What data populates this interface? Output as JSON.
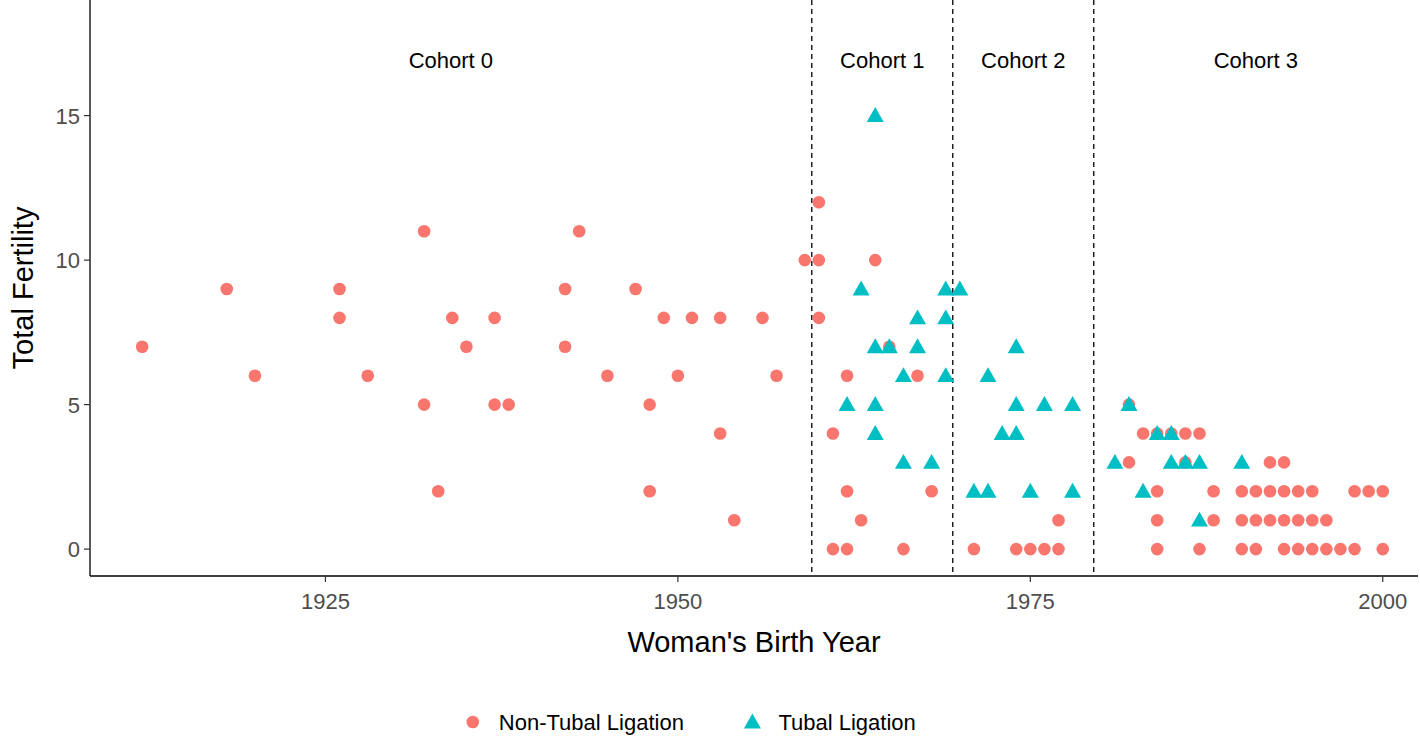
{
  "chart_data": {
    "type": "scatter",
    "x_label": "Woman's Birth Year",
    "y_label": "Total Fertility",
    "xlim": [
      1908.3,
      2002.5
    ],
    "ylim": [
      -0.93,
      19
    ],
    "xticks": [
      1925,
      1950,
      1975,
      2000
    ],
    "yticks": [
      0,
      5,
      10,
      15
    ],
    "grid": false,
    "legend": "bottom",
    "vlines": [
      1959.5,
      1969.5,
      1979.5
    ],
    "annotations": [
      "Cohort 0",
      "Cohort 1",
      "Cohort 2",
      "Cohort 3"
    ],
    "series": [
      {
        "name": "Non-Tubal Ligation",
        "color": "#F8766D",
        "marker": "circle",
        "x": [
          1912,
          1918,
          1920,
          1926,
          1926,
          1928,
          1932,
          1932,
          1933,
          1934,
          1935,
          1937,
          1937,
          1938,
          1942,
          1942,
          1943,
          1945,
          1947,
          1948,
          1948,
          1949,
          1950,
          1951,
          1953,
          1953,
          1954,
          1956,
          1957,
          1959,
          1960,
          1960,
          1960,
          1961,
          1961,
          1962,
          1962,
          1962,
          1963,
          1964,
          1965,
          1966,
          1967,
          1968,
          1971,
          1974,
          1975,
          1976,
          1977,
          1977,
          1982,
          1982,
          1983,
          1984,
          1984,
          1984,
          1984,
          1985,
          1986,
          1986,
          1987,
          1987,
          1988,
          1988,
          1990,
          1990,
          1990,
          1991,
          1991,
          1991,
          1992,
          1992,
          1992,
          1993,
          1993,
          1993,
          1993,
          1994,
          1994,
          1994,
          1995,
          1995,
          1995,
          1996,
          1996,
          1997,
          1998,
          1998,
          1999,
          2000,
          2000
        ],
        "values": [
          7,
          9,
          6,
          9,
          8,
          6,
          11,
          5,
          2,
          8,
          7,
          8,
          5,
          5,
          9,
          7,
          11,
          6,
          9,
          5,
          2,
          8,
          6,
          8,
          8,
          4,
          1,
          8,
          6,
          10,
          10,
          8,
          12,
          4,
          0,
          6,
          2,
          0,
          1,
          10,
          7,
          0,
          6,
          2,
          0,
          0,
          0,
          0,
          1,
          0,
          5,
          3,
          4,
          4,
          2,
          1,
          0,
          4,
          4,
          3,
          4,
          0,
          2,
          1,
          2,
          1,
          0,
          2,
          1,
          0,
          3,
          2,
          1,
          3,
          2,
          1,
          0,
          2,
          1,
          0,
          2,
          1,
          0,
          1,
          0,
          0,
          2,
          0,
          2,
          2,
          0
        ]
      },
      {
        "name": "Tubal Ligation",
        "color": "#00BFC4",
        "marker": "triangle",
        "x": [
          1962,
          1963,
          1964,
          1964,
          1964,
          1964,
          1965,
          1966,
          1966,
          1967,
          1967,
          1968,
          1969,
          1969,
          1969,
          1970,
          1971,
          1972,
          1972,
          1973,
          1974,
          1974,
          1974,
          1975,
          1976,
          1978,
          1978,
          1981,
          1982,
          1983,
          1984,
          1985,
          1985,
          1986,
          1987,
          1987,
          1990
        ],
        "values": [
          5,
          9,
          15,
          7,
          5,
          4,
          7,
          6,
          3,
          8,
          7,
          3,
          9,
          8,
          6,
          9,
          2,
          6,
          2,
          4,
          7,
          5,
          4,
          2,
          5,
          5,
          2,
          3,
          5,
          2,
          4,
          4,
          3,
          3,
          3,
          1,
          3
        ]
      }
    ]
  }
}
